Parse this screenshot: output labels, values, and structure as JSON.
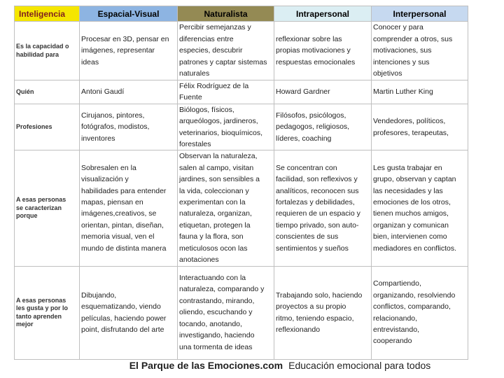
{
  "table": {
    "headers": [
      "Inteligencia",
      "Espacial-Visual",
      "Naturalista",
      "Intrapersonal",
      "Interpersonal"
    ],
    "rows": [
      {
        "label": [
          "Es la capacidad o",
          "habilidad para"
        ],
        "cells": [
          [
            "Procesar en 3D, pensar en",
            "imágenes, representar",
            "ideas"
          ],
          [
            "Percibir semejanzas y",
            "diferencias entre",
            "especies, descubrir",
            "patrones y captar sistemas",
            "naturales"
          ],
          [
            "reflexionar sobre las",
            "propias motivaciones y",
            "respuestas emocionales"
          ],
          [
            "Conocer y para",
            "comprender a otros, sus",
            "motivaciones, sus",
            "intenciones y sus",
            "objetivos"
          ]
        ]
      },
      {
        "label": [
          "Quién"
        ],
        "cells": [
          [
            "Antoni Gaudí"
          ],
          [
            "Félix Rodríguez de la",
            "Fuente"
          ],
          [
            "Howard Gardner"
          ],
          [
            "Martin Luther King"
          ]
        ]
      },
      {
        "label": [
          "Profesiones"
        ],
        "cells": [
          [
            "Cirujanos, pintores,",
            "fotógrafos, modistos,",
            "inventores"
          ],
          [
            "Biólogos, físicos,",
            "arqueólogos, jardineros,",
            "veterinarios, bioquímicos,",
            "forestales"
          ],
          [
            "Filósofos, psicólogos,",
            "pedagogos, religiosos,",
            "líderes, coaching"
          ],
          [
            "Vendedores, políticos,",
            "profesores, terapeutas,"
          ]
        ]
      },
      {
        "label": [
          "A esas personas",
          "se caracterizan",
          "porque"
        ],
        "cells": [
          [
            "Sobresalen en la",
            "visualización y",
            "habilidades para entender",
            "mapas, piensan en",
            "imágenes,creativos, se",
            "orientan, pintan, diseñan,",
            "memoria visual, ven el",
            "mundo de distinta manera"
          ],
          [
            "Observan la naturaleza,",
            "salen al campo, visitan",
            "jardines, son sensibles a",
            "la vida, coleccionan y",
            "experimentan con la",
            "naturaleza, organizan,",
            "etiquetan, protegen la",
            "fauna y la flora, son",
            "meticulosos ocon las",
            "anotaciones"
          ],
          [
            "Se concentran con",
            "facilidad, son reflexivos y",
            "analíticos, reconocen sus",
            "fortalezas y debilidades,",
            "requieren de un espacio y",
            "tiempo privado, son auto-",
            "conscientes de sus",
            "sentimientos y sueños"
          ],
          [
            "Les gusta trabajar en",
            "grupo, observan y captan",
            "las necesidades y las",
            "emociones de los otros,",
            "tienen muchos amigos,",
            "organizan y comunican",
            "bien, intervienen como",
            "mediadores en conflictos."
          ]
        ]
      },
      {
        "label": [
          "A esas personas",
          "les gusta y por lo",
          "tanto aprenden",
          "mejor"
        ],
        "cells": [
          [
            "Dibujando,",
            "esquematizando, viendo",
            "películas, haciendo power",
            "point, disfrutando del arte"
          ],
          [
            "Interactuando con la",
            "naturaleza, comparando y",
            "contrastando, mirando,",
            "oliendo, escuchando y",
            "tocando, anotando,",
            "investigando, haciendo",
            "una tormenta de ideas"
          ],
          [
            "Trabajando solo, haciendo",
            "proyectos a su propio",
            "ritmo, teniendo espacio,",
            "reflexionando"
          ],
          [
            "Compartiendo,",
            "organizando, resolviendo",
            "conflictos, comparando,",
            "relacionando,",
            "entrevistando,",
            "cooperando"
          ]
        ]
      }
    ]
  },
  "footer": {
    "brand": "El Parque de las Emociones.com",
    "tagline": "Educación emocional para todos"
  }
}
